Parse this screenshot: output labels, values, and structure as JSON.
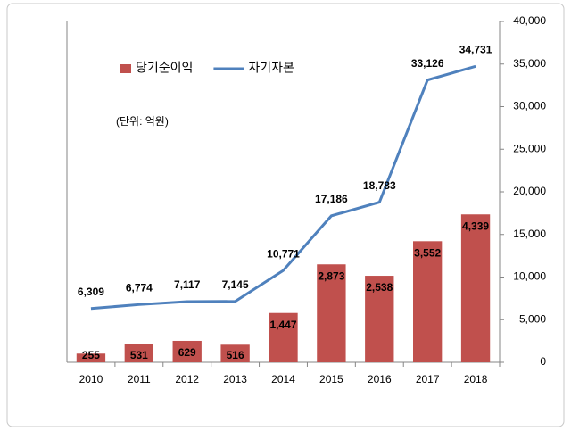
{
  "chart_data": {
    "type": "bar-line",
    "categories": [
      "2010",
      "2011",
      "2012",
      "2013",
      "2014",
      "2015",
      "2016",
      "2017",
      "2018"
    ],
    "annotation": "(단위: 억원)",
    "series": [
      {
        "name": "당기순이익",
        "type": "bar",
        "color": "#c0504d",
        "axis": "y",
        "values": [
          255,
          531,
          629,
          516,
          1447,
          2873,
          2538,
          3552,
          4339
        ],
        "value_labels": [
          "255",
          "531",
          "629",
          "516",
          "1,447",
          "2,873",
          "2,538",
          "3,552",
          "4,339"
        ]
      },
      {
        "name": "자기자본",
        "type": "line",
        "color": "#4f81bd",
        "axis": "y2",
        "values": [
          6309,
          6774,
          7117,
          7145,
          10771,
          17186,
          18783,
          33126,
          34731
        ],
        "value_labels": [
          "6,309",
          "6,774",
          "7,117",
          "7,145",
          "10,771",
          "17,186",
          "18,783",
          "33,126",
          "34,731"
        ]
      }
    ],
    "ylim": [
      0,
      10000
    ],
    "y2lim": [
      0,
      40000
    ],
    "y2ticks": [
      0,
      {
        "value": 5000,
        "label": "5,000"
      },
      {
        "value": 10000,
        "label": "10,000"
      },
      {
        "value": 15000,
        "label": "15,000"
      },
      {
        "value": 20000,
        "label": "20,000"
      },
      {
        "value": 25000,
        "label": "25,000"
      },
      {
        "value": 30000,
        "label": "30,000"
      },
      {
        "value": 35000,
        "label": "35,000"
      },
      {
        "value": 40000,
        "label": "40,000"
      }
    ],
    "legend": "top-left"
  }
}
